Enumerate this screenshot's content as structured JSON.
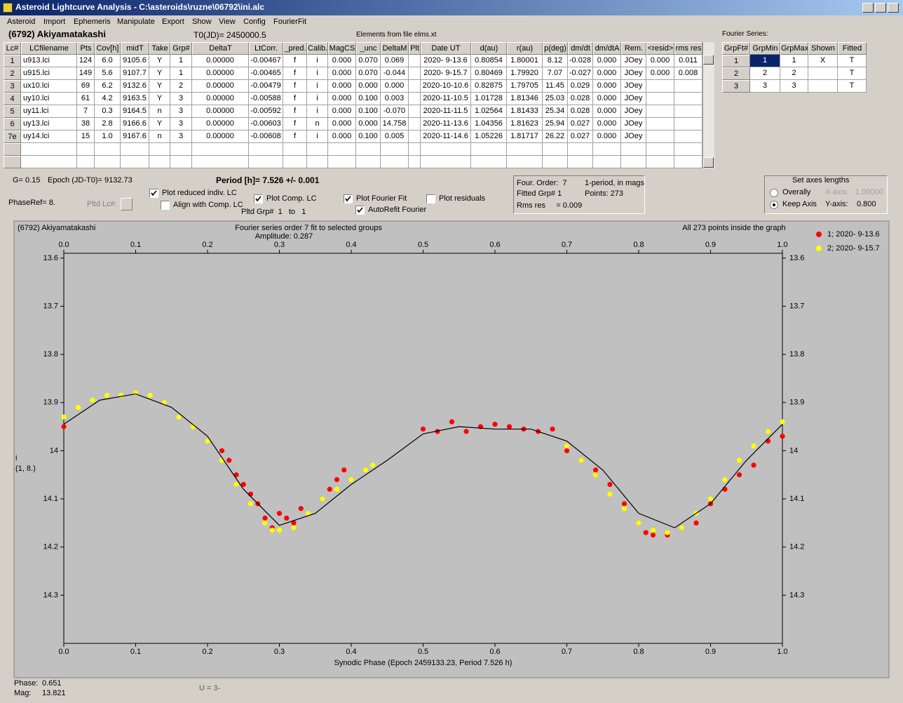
{
  "window": {
    "title": "Asteroid Lightcurve Analysis - C:\\asteroids\\ruzne\\06792\\ini.alc"
  },
  "menu": [
    "Asteroid",
    "Import",
    "Ephemeris",
    "Manipulate",
    "Export",
    "Show",
    "View",
    "Config",
    "FourierFit"
  ],
  "header": {
    "object": "(6792) Akiyamatakashi",
    "t0": "T0(JD)= 2450000.5",
    "elements": "Elements from file elms.xt",
    "fourier_title": "Fourier Series:"
  },
  "table": {
    "headers": [
      "Lc#",
      "LCfilename",
      "Pts",
      "Cov[h]",
      "midT",
      "Take",
      "Grp#",
      "DeltaT",
      "LtCorr.",
      "_pred.",
      "Calib.",
      "MagCS",
      "_unc",
      "DeltaM",
      "Plt",
      "Date UT",
      "d(au)",
      "r(au)",
      "p(deg)",
      "dm/dt",
      "dm/dtA",
      "Rem.",
      "<resid>",
      "rms res"
    ],
    "rows": [
      [
        "1",
        "u913.lci",
        "124",
        "6.0",
        "9105.6",
        "Y",
        "1",
        "0.00000",
        "-0.00467",
        "f",
        "i",
        "0.000",
        "0.070",
        "0.069",
        null,
        "2020- 9-13.6",
        "0.80854",
        "1.80001",
        "8.12",
        "-0.028",
        "0.000",
        "JOey",
        "0.000",
        "0.011"
      ],
      [
        "2",
        "u915.lci",
        "149",
        "5.6",
        "9107.7",
        "Y",
        "1",
        "0.00000",
        "-0.00465",
        "f",
        "i",
        "0.000",
        "0.070",
        "-0.044",
        null,
        "2020- 9-15.7",
        "0.80469",
        "1.79920",
        "7.07",
        "-0.027",
        "0.000",
        "JOey",
        "0.000",
        "0.008"
      ],
      [
        "3",
        "ux10.lci",
        "69",
        "6.2",
        "9132.6",
        "Y",
        "2",
        "0.00000",
        "-0.00479",
        "f",
        "i",
        "0.000",
        "0.000",
        "0.000",
        null,
        "2020-10-10.6",
        "0.82875",
        "1.79705",
        "11.45",
        "0.029",
        "0.000",
        "JOey",
        null,
        null
      ],
      [
        "4",
        "uy10.lci",
        "61",
        "4.2",
        "9163.5",
        "Y",
        "3",
        "0.00000",
        "-0.00588",
        "f",
        "i",
        "0.000",
        "0.100",
        "0.003",
        null,
        "2020-11-10.5",
        "1.01728",
        "1.81346",
        "25.03",
        "0.028",
        "0.000",
        "JOey",
        null,
        null
      ],
      [
        "5",
        "uy11.lci",
        "7",
        "0.3",
        "9164.5",
        "n",
        "3",
        "0.00000",
        "-0.00592",
        "f",
        "i",
        "0.000",
        "0.100",
        "-0.070",
        null,
        "2020-11-11.5",
        "1.02564",
        "1.81433",
        "25.34",
        "0.028",
        "0.000",
        "JOey",
        null,
        null
      ],
      [
        "6",
        "uy13.lci",
        "38",
        "2.8",
        "9166.6",
        "Y",
        "3",
        "0.00000",
        "-0.00603",
        "f",
        "n",
        "0.000",
        "0.000",
        "14.758",
        null,
        "2020-11-13.6",
        "1.04356",
        "1.81623",
        "25.94",
        "0.027",
        "0.000",
        "JOey",
        null,
        null
      ],
      [
        "7e",
        "uy14.lci",
        "15",
        "1.0",
        "9167.6",
        "n",
        "3",
        "0.00000",
        "-0.00608",
        "f",
        "i",
        "0.000",
        "0.100",
        "0.005",
        null,
        "2020-11-14.6",
        "1.05226",
        "1.81717",
        "26.22",
        "0.027",
        "0.000",
        "JOey",
        null,
        null
      ]
    ]
  },
  "fourier_table": {
    "headers": [
      "GrpFt#",
      "GrpMin",
      "GrpMax",
      "Shown",
      "Fitted"
    ],
    "rows": [
      [
        "1",
        "1",
        "1",
        "X",
        "T"
      ],
      [
        "2",
        "2",
        "2",
        null,
        "T"
      ],
      [
        "3",
        "3",
        "3",
        null,
        "T"
      ]
    ]
  },
  "controls": {
    "g": "G= 0.15",
    "epoch": "Epoch (JD-T0)= 9132.73",
    "period": "Period [h]= 7.526 +/- 0.001",
    "phaseref": "PhaseRef= 8.",
    "pltd_lc": "Pltd Lc#:",
    "pltd_grp": "Pltd Grp#  1   to   1",
    "checkboxes": [
      {
        "label": "Plot reduced indiv. LC",
        "checked": true
      },
      {
        "label": "Align with Comp. LC",
        "checked": false
      },
      {
        "label": "Plot Comp. LC",
        "checked": true
      },
      {
        "label": "Plot Fourier Fit",
        "checked": true
      },
      {
        "label": "Plot residuals",
        "checked": false
      },
      {
        "label": "AutoRefit Fourier",
        "checked": true
      }
    ],
    "info": {
      "order": "Four. Order:  7",
      "mode": "1-period, in mags",
      "fitted": "Fitted Grp# 1",
      "points": "Points: 273",
      "rms": "Rms res     = 0.009"
    },
    "axes_box": {
      "title": "Set axes lengths",
      "radios": [
        {
          "label": "Overally",
          "selected": false
        },
        {
          "label": "Keep Axis",
          "selected": true
        }
      ],
      "x_label": "X-axis:",
      "x_value": "1.00000",
      "y_label": "Y-axis:",
      "y_value": "0.800"
    }
  },
  "chart_data": {
    "type": "scatter",
    "name_label": "(6792) Akiyamatakashi",
    "title": "Fourier series order 7 fit to selected groups",
    "subtitle": "Amplitude: 0.287",
    "annotation": "All 273 points inside the graph",
    "xlabel": "Synodic Phase (Epoch 2459133.23, Period 7.526 h)",
    "ylabel": "i",
    "ylabel2": "(1, 8.)",
    "xlim": [
      0,
      1
    ],
    "ylim": [
      13.59,
      14.4
    ],
    "y_reversed": true,
    "grid": false,
    "legend": "right",
    "xticks": [
      {
        "value": 0,
        "label": "0.0"
      },
      0.1,
      0.2,
      0.3,
      0.4,
      0.5,
      0.6,
      0.7,
      0.8,
      0.9,
      {
        "value": 1,
        "label": "1.0"
      }
    ],
    "yticks": [
      13.6,
      13.7,
      13.8,
      13.9,
      14.0,
      14.1,
      14.2,
      14.3
    ],
    "series": [
      {
        "name": "1; 2020- 9-13.6",
        "color": "#ff0000",
        "x": [
          0.0,
          0.22,
          0.23,
          0.24,
          0.25,
          0.26,
          0.27,
          0.28,
          0.29,
          0.3,
          0.31,
          0.32,
          0.33,
          0.36,
          0.37,
          0.38,
          0.39,
          0.5,
          0.52,
          0.54,
          0.56,
          0.58,
          0.6,
          0.62,
          0.64,
          0.66,
          0.68,
          0.7,
          0.72,
          0.74,
          0.76,
          0.78,
          0.8,
          0.81,
          0.82,
          0.84,
          0.86,
          0.88,
          0.9,
          0.92,
          0.94,
          0.96,
          0.98,
          1.0
        ],
        "values": [
          13.95,
          14.0,
          14.02,
          14.05,
          14.07,
          14.09,
          14.11,
          14.14,
          14.16,
          14.13,
          14.14,
          14.15,
          14.12,
          14.1,
          14.08,
          14.06,
          14.04,
          13.955,
          13.96,
          13.94,
          13.96,
          13.95,
          13.945,
          13.95,
          13.955,
          13.96,
          13.955,
          14.0,
          14.02,
          14.04,
          14.07,
          14.11,
          14.15,
          14.17,
          14.175,
          14.175,
          14.16,
          14.15,
          14.11,
          14.08,
          14.05,
          14.03,
          13.98,
          13.97
        ]
      },
      {
        "name": "2; 2020- 9-15.7",
        "color": "#ffff00",
        "x": [
          0.0,
          0.02,
          0.04,
          0.06,
          0.08,
          0.1,
          0.12,
          0.14,
          0.16,
          0.18,
          0.2,
          0.22,
          0.24,
          0.26,
          0.28,
          0.29,
          0.3,
          0.32,
          0.34,
          0.36,
          0.38,
          0.4,
          0.42,
          0.43,
          0.7,
          0.72,
          0.74,
          0.76,
          0.78,
          0.8,
          0.82,
          0.84,
          0.86,
          0.88,
          0.9,
          0.92,
          0.94,
          0.96,
          0.98,
          1.0
        ],
        "values": [
          13.93,
          13.91,
          13.895,
          13.885,
          13.885,
          13.88,
          13.885,
          13.9,
          13.93,
          13.95,
          13.98,
          14.02,
          14.07,
          14.11,
          14.15,
          14.165,
          14.165,
          14.16,
          14.13,
          14.1,
          14.08,
          14.06,
          14.04,
          14.03,
          13.99,
          14.02,
          14.05,
          14.09,
          14.12,
          14.15,
          14.165,
          14.17,
          14.16,
          14.13,
          14.1,
          14.06,
          14.02,
          13.99,
          13.96,
          13.94
        ]
      }
    ],
    "fit": {
      "color": "#000000",
      "x": [
        0.0,
        0.05,
        0.1,
        0.15,
        0.2,
        0.25,
        0.3,
        0.35,
        0.4,
        0.45,
        0.5,
        0.55,
        0.6,
        0.65,
        0.7,
        0.75,
        0.8,
        0.85,
        0.9,
        0.95,
        1.0
      ],
      "values": [
        13.945,
        13.895,
        13.882,
        13.91,
        13.97,
        14.08,
        14.155,
        14.13,
        14.07,
        14.02,
        13.965,
        13.95,
        13.955,
        13.955,
        13.98,
        14.04,
        14.13,
        14.16,
        14.11,
        14.02,
        13.945
      ]
    }
  },
  "status": {
    "phase_label": "Phase:",
    "phase": "0.651",
    "mag_label": "Mag:",
    "mag": "13.821",
    "u": "U = 3-"
  }
}
